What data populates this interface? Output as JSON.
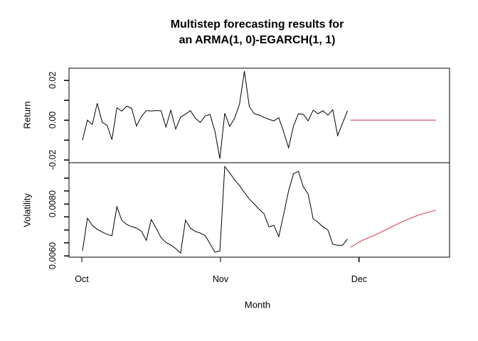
{
  "title": {
    "line1": "Multistep forecasting results for",
    "line2": "an ARMA(1, 0)-EGARCH(1, 1)"
  },
  "colors": {
    "observed": "#000000",
    "forecast": "#DF536B",
    "frame": "#000000",
    "background": "#FFFFFF"
  },
  "chart_data": {
    "type": "line",
    "title": "Multistep forecasting results for an ARMA(1, 0)-EGARCH(1, 1)",
    "frame_color": "#000000",
    "grid": false,
    "legend": "none",
    "x_axis": {
      "label": "Month",
      "xlim": [
        -1.75,
        75.8
      ],
      "ticks": [
        {
          "t": 0.86,
          "label": "Oct"
        },
        {
          "t": 29.12,
          "label": "Nov"
        },
        {
          "t": 57.38,
          "label": "Dec"
        }
      ]
    },
    "panels": [
      {
        "name": "return",
        "ylabel": "Return",
        "ylim": [
          -0.0214,
          0.0261
        ],
        "yticks": [
          {
            "v": -0.02,
            "label": "-0.02"
          },
          {
            "v": -0.01,
            "label": ""
          },
          {
            "v": 0.0,
            "label": "0.00"
          },
          {
            "v": 0.01,
            "label": ""
          },
          {
            "v": 0.02,
            "label": "0.02"
          }
        ],
        "series": [
          {
            "name": "observed",
            "color": "#000000",
            "width": 1,
            "x_start": 1,
            "x_step": 1,
            "y": [
              -0.01,
              0.0,
              -0.0022,
              0.0085,
              -0.001,
              -0.0026,
              -0.0098,
              0.0062,
              0.0045,
              0.007,
              0.006,
              -0.003,
              0.0018,
              0.0048,
              0.0046,
              0.0048,
              0.0047,
              -0.0035,
              0.005,
              -0.0045,
              0.0015,
              0.003,
              0.0048,
              0.001,
              -0.0012,
              0.0021,
              0.0029,
              -0.0057,
              -0.0194,
              0.0035,
              -0.0032,
              0.001,
              0.008,
              0.0246,
              0.0068,
              0.0032,
              0.0025,
              0.0014,
              0.0004,
              -0.0004,
              0.0012,
              -0.006,
              -0.0139,
              -0.003,
              0.0032,
              0.0029,
              -0.0004,
              0.005,
              0.0032,
              0.0047,
              0.0025,
              0.0052,
              -0.0078,
              -0.0015,
              0.0047
            ]
          },
          {
            "name": "forecast",
            "color": "#DF536B",
            "width": 1.2,
            "x": [
              55.6,
              73.0
            ],
            "y": [
              0.0,
              0.0
            ]
          }
        ]
      },
      {
        "name": "volatility",
        "ylabel": "Volatility",
        "ylim": [
          0.00595,
          0.00959
        ],
        "yticks": [
          {
            "v": 0.006,
            "label": "0.0060"
          },
          {
            "v": 0.0065,
            "label": ""
          },
          {
            "v": 0.007,
            "label": ""
          },
          {
            "v": 0.0075,
            "label": ""
          },
          {
            "v": 0.008,
            "label": "0.0080"
          },
          {
            "v": 0.0085,
            "label": ""
          },
          {
            "v": 0.009,
            "label": ""
          }
        ],
        "series": [
          {
            "name": "observed",
            "color": "#000000",
            "width": 1,
            "x_start": 1,
            "x_step": 1,
            "y": [
              0.0062,
              0.00745,
              0.00718,
              0.00702,
              0.00692,
              0.00683,
              0.00677,
              0.00789,
              0.00737,
              0.00721,
              0.00713,
              0.00707,
              0.00695,
              0.0066,
              0.0074,
              0.00707,
              0.0067,
              0.00652,
              0.00642,
              0.00628,
              0.00611,
              0.00738,
              0.00707,
              0.00694,
              0.00688,
              0.00678,
              0.00647,
              0.00614,
              0.00619,
              0.00944,
              0.0092,
              0.00893,
              0.00871,
              0.00844,
              0.00819,
              0.008,
              0.0078,
              0.00762,
              0.00712,
              0.00718,
              0.00674,
              0.0076,
              0.0085,
              0.00916,
              0.00926,
              0.00866,
              0.00838,
              0.00743,
              0.00729,
              0.00712,
              0.007,
              0.00645,
              0.00641,
              0.00641,
              0.00665
            ]
          },
          {
            "name": "forecast",
            "color": "#DF536B",
            "width": 1.2,
            "x": [
              55.6,
              58.0,
              60.6,
              63.5,
              66.4,
              69.3,
              71.2,
              73.0
            ],
            "y": [
              0.00633,
              0.0066,
              0.0068,
              0.00707,
              0.00734,
              0.00756,
              0.00767,
              0.00776
            ]
          }
        ]
      }
    ]
  }
}
